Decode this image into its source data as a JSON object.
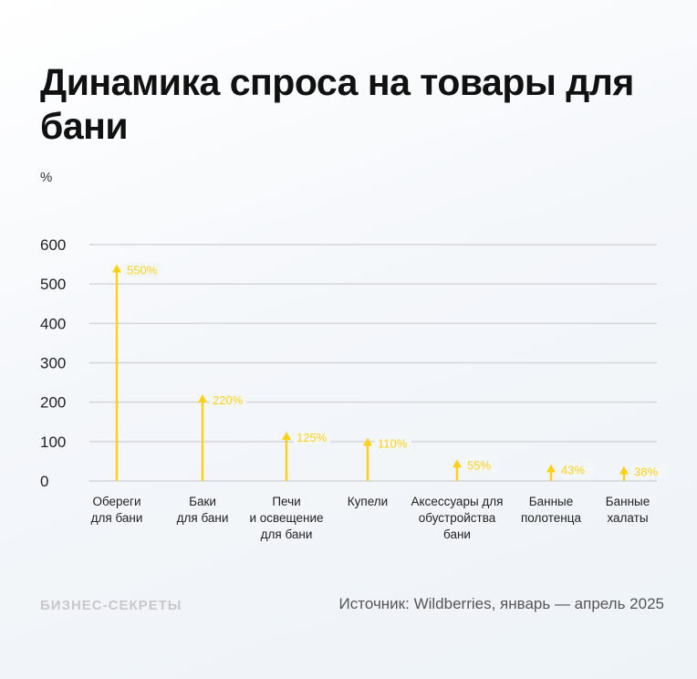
{
  "title": "Динамика спроса на товары для бани",
  "footer": {
    "logo": "БИЗНЕС-СЕКРЕТЫ",
    "source": "Источник: Wildberries, январь — апрель 2025"
  },
  "chart_data": {
    "type": "bar",
    "style": "arrow-stems",
    "ylabel": "%",
    "ylim": [
      0,
      600
    ],
    "yticks": [
      0,
      100,
      200,
      300,
      400,
      500,
      600
    ],
    "grid": true,
    "color": "#fcd116",
    "categories": [
      "Обереги\nдля бани",
      "Баки\nдля бани",
      "Печи\nи освещение\nдля бани",
      "Купели",
      "Аксессуары для\nобустройства\nбани",
      "Банные\nполотенца",
      "Банные\nхалаты"
    ],
    "values": [
      550,
      220,
      125,
      110,
      55,
      43,
      38
    ],
    "data_labels": [
      "550%",
      "220%",
      "125%",
      "110%",
      "55%",
      "43%",
      "38%"
    ]
  }
}
